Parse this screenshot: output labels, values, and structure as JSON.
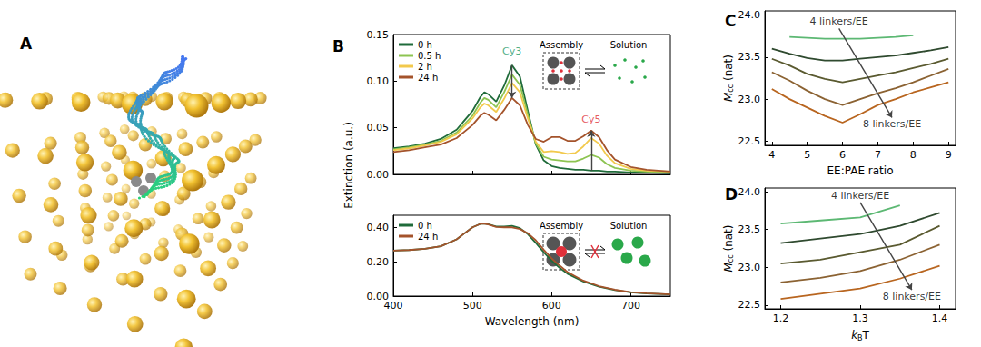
{
  "panel_a": {
    "title": "A"
  },
  "chart_data": [
    {
      "type": "line",
      "title": "B",
      "y_label": "Extinction (a.u.)",
      "xlim": [
        400,
        750
      ],
      "xticks": [
        400,
        500,
        600,
        700
      ],
      "ylim": [
        0,
        0.15
      ],
      "yticks": [
        {
          "value": 0,
          "label": "0.00"
        },
        {
          "value": 0.05,
          "label": "0.05"
        },
        {
          "value": 0.1,
          "label": "0.10"
        },
        {
          "value": 0.15,
          "label": "0.15"
        }
      ],
      "tick_labels": "y",
      "legend": "upper left",
      "x": [
        400,
        420,
        440,
        460,
        480,
        500,
        510,
        515,
        520,
        530,
        540,
        550,
        560,
        570,
        580,
        590,
        600,
        610,
        620,
        630,
        640,
        650,
        660,
        670,
        680,
        700,
        720,
        750
      ],
      "series": [
        {
          "name": "0 h",
          "color": "#1f6b3a",
          "values": [
            0.028,
            0.03,
            0.033,
            0.038,
            0.048,
            0.068,
            0.083,
            0.088,
            0.086,
            0.078,
            0.095,
            0.117,
            0.105,
            0.068,
            0.032,
            0.015,
            0.009,
            0.007,
            0.006,
            0.005,
            0.005,
            0.004,
            0.004,
            0.003,
            0.003,
            0.002,
            0.002,
            0.001
          ]
        },
        {
          "name": "0.5 h",
          "color": "#8dc451",
          "values": [
            0.027,
            0.029,
            0.032,
            0.036,
            0.045,
            0.063,
            0.077,
            0.082,
            0.08,
            0.072,
            0.088,
            0.107,
            0.096,
            0.064,
            0.033,
            0.019,
            0.016,
            0.015,
            0.014,
            0.014,
            0.017,
            0.021,
            0.018,
            0.011,
            0.007,
            0.004,
            0.003,
            0.002
          ]
        },
        {
          "name": "2 h",
          "color": "#f2c94c",
          "values": [
            0.026,
            0.028,
            0.031,
            0.035,
            0.043,
            0.06,
            0.072,
            0.076,
            0.074,
            0.067,
            0.081,
            0.098,
            0.088,
            0.06,
            0.035,
            0.024,
            0.025,
            0.024,
            0.022,
            0.023,
            0.03,
            0.039,
            0.033,
            0.02,
            0.012,
            0.006,
            0.004,
            0.003
          ]
        },
        {
          "name": "24 h",
          "color": "#a4532b",
          "values": [
            0.024,
            0.026,
            0.029,
            0.032,
            0.039,
            0.053,
            0.063,
            0.066,
            0.064,
            0.058,
            0.069,
            0.082,
            0.074,
            0.053,
            0.038,
            0.035,
            0.04,
            0.04,
            0.036,
            0.036,
            0.041,
            0.047,
            0.04,
            0.026,
            0.016,
            0.008,
            0.005,
            0.003
          ]
        }
      ],
      "annotations": [
        {
          "text": "Cy3",
          "x": 550,
          "y": 0.125,
          "color": "#1f9a6a"
        },
        {
          "text": "Cy5",
          "x": 650,
          "y": 0.052,
          "color": "#e0303a"
        }
      ],
      "inset": {
        "left": "Assembly",
        "right": "Solution"
      }
    },
    {
      "type": "line",
      "x_label": "Wavelength (nm)",
      "xlim": [
        400,
        750
      ],
      "xticks": [
        400,
        500,
        600,
        700
      ],
      "ylim": [
        0,
        0.47
      ],
      "yticks": [
        {
          "value": 0,
          "label": "0.00"
        },
        {
          "value": 0.2,
          "label": "0.20"
        },
        {
          "value": 0.4,
          "label": "0.40"
        }
      ],
      "legend": "upper left",
      "x": [
        400,
        420,
        440,
        460,
        480,
        490,
        500,
        510,
        515,
        520,
        530,
        540,
        550,
        560,
        570,
        580,
        590,
        600,
        610,
        620,
        640,
        660,
        680,
        700,
        720,
        750
      ],
      "series": [
        {
          "name": "0 h",
          "color": "#1f6b3a",
          "values": [
            0.265,
            0.268,
            0.275,
            0.29,
            0.33,
            0.365,
            0.4,
            0.42,
            0.422,
            0.418,
            0.405,
            0.405,
            0.408,
            0.395,
            0.36,
            0.31,
            0.255,
            0.205,
            0.165,
            0.13,
            0.085,
            0.055,
            0.035,
            0.022,
            0.015,
            0.01
          ]
        },
        {
          "name": "24 h",
          "color": "#a4532b",
          "values": [
            0.265,
            0.268,
            0.275,
            0.29,
            0.33,
            0.365,
            0.4,
            0.42,
            0.421,
            0.416,
            0.402,
            0.4,
            0.4,
            0.39,
            0.365,
            0.325,
            0.27,
            0.22,
            0.178,
            0.14,
            0.09,
            0.058,
            0.037,
            0.023,
            0.016,
            0.01
          ]
        }
      ],
      "inset": {
        "left": "Assembly",
        "right": "Solution"
      }
    },
    {
      "type": "line",
      "title": "C",
      "x_label": "EE:PAE ratio",
      "y_label": {
        "main": "M",
        "sub": "cc",
        "rest": " (nat)"
      },
      "xlim": [
        3.8,
        9.2
      ],
      "xticks": [
        4,
        5,
        6,
        7,
        8,
        9
      ],
      "ylim": [
        22.45,
        24.05
      ],
      "yticks": [
        22.5,
        {
          "value": 23,
          "label": "23.0"
        },
        23.5,
        {
          "value": 24,
          "label": "24.0"
        }
      ],
      "x": [
        4,
        4.5,
        5,
        5.5,
        6,
        6.5,
        7,
        7.5,
        8,
        8.5,
        9
      ],
      "series": [
        {
          "color": "#5cb873",
          "values": [
            null,
            23.74,
            23.73,
            23.72,
            23.72,
            23.72,
            23.73,
            23.74,
            23.76,
            null,
            null
          ]
        },
        {
          "color": "#2f4a2f",
          "values": [
            23.6,
            23.54,
            23.49,
            23.46,
            23.46,
            23.48,
            23.5,
            23.52,
            23.55,
            23.58,
            23.62
          ]
        },
        {
          "color": "#5a5a30",
          "values": [
            23.48,
            23.4,
            23.3,
            23.24,
            23.2,
            23.24,
            23.28,
            23.32,
            23.37,
            23.42,
            23.48
          ]
        },
        {
          "color": "#8b6232",
          "values": [
            23.32,
            23.22,
            23.1,
            23.0,
            22.93,
            23.0,
            23.07,
            23.13,
            23.2,
            23.28,
            23.36
          ]
        },
        {
          "color": "#b8651f",
          "values": [
            23.12,
            23.0,
            22.9,
            22.8,
            22.72,
            22.82,
            22.93,
            23.0,
            23.08,
            23.14,
            23.2
          ]
        }
      ],
      "annotations": [
        {
          "text": "4 linkers/EE",
          "x": 5.9,
          "y": 23.84
        },
        {
          "text": "8 linkers/EE",
          "x": 7.4,
          "y": 22.78
        }
      ]
    },
    {
      "type": "line",
      "title": "D",
      "x_label": {
        "main": "k",
        "sub": "B",
        "rest": "T"
      },
      "y_label": {
        "main": "M",
        "sub": "cc",
        "rest": " (nat)"
      },
      "xlim": [
        1.18,
        1.42
      ],
      "xticks": [
        1.2,
        1.3,
        1.4
      ],
      "ylim": [
        22.45,
        24.05
      ],
      "yticks": [
        22.5,
        {
          "value": 23,
          "label": "23.0"
        },
        23.5,
        {
          "value": 24,
          "label": "24.0"
        }
      ],
      "x": [
        1.2,
        1.25,
        1.3,
        1.35,
        1.4
      ],
      "series": [
        {
          "color": "#5cb873",
          "values": [
            23.58,
            23.62,
            23.66,
            23.82,
            null
          ]
        },
        {
          "color": "#2f4a2f",
          "values": [
            23.32,
            23.38,
            23.44,
            23.55,
            23.72
          ]
        },
        {
          "color": "#5a5a30",
          "values": [
            23.05,
            23.1,
            23.2,
            23.3,
            23.55
          ]
        },
        {
          "color": "#8b6232",
          "values": [
            22.8,
            22.86,
            22.95,
            23.1,
            23.3
          ]
        },
        {
          "color": "#b8651f",
          "values": [
            22.58,
            22.65,
            22.72,
            22.85,
            23.02
          ]
        }
      ],
      "annotations": [
        {
          "text": "4 linkers/EE",
          "x": 1.3,
          "y": 23.86
        },
        {
          "text": "8 linkers/EE",
          "x": 1.365,
          "y": 22.7
        }
      ]
    }
  ]
}
